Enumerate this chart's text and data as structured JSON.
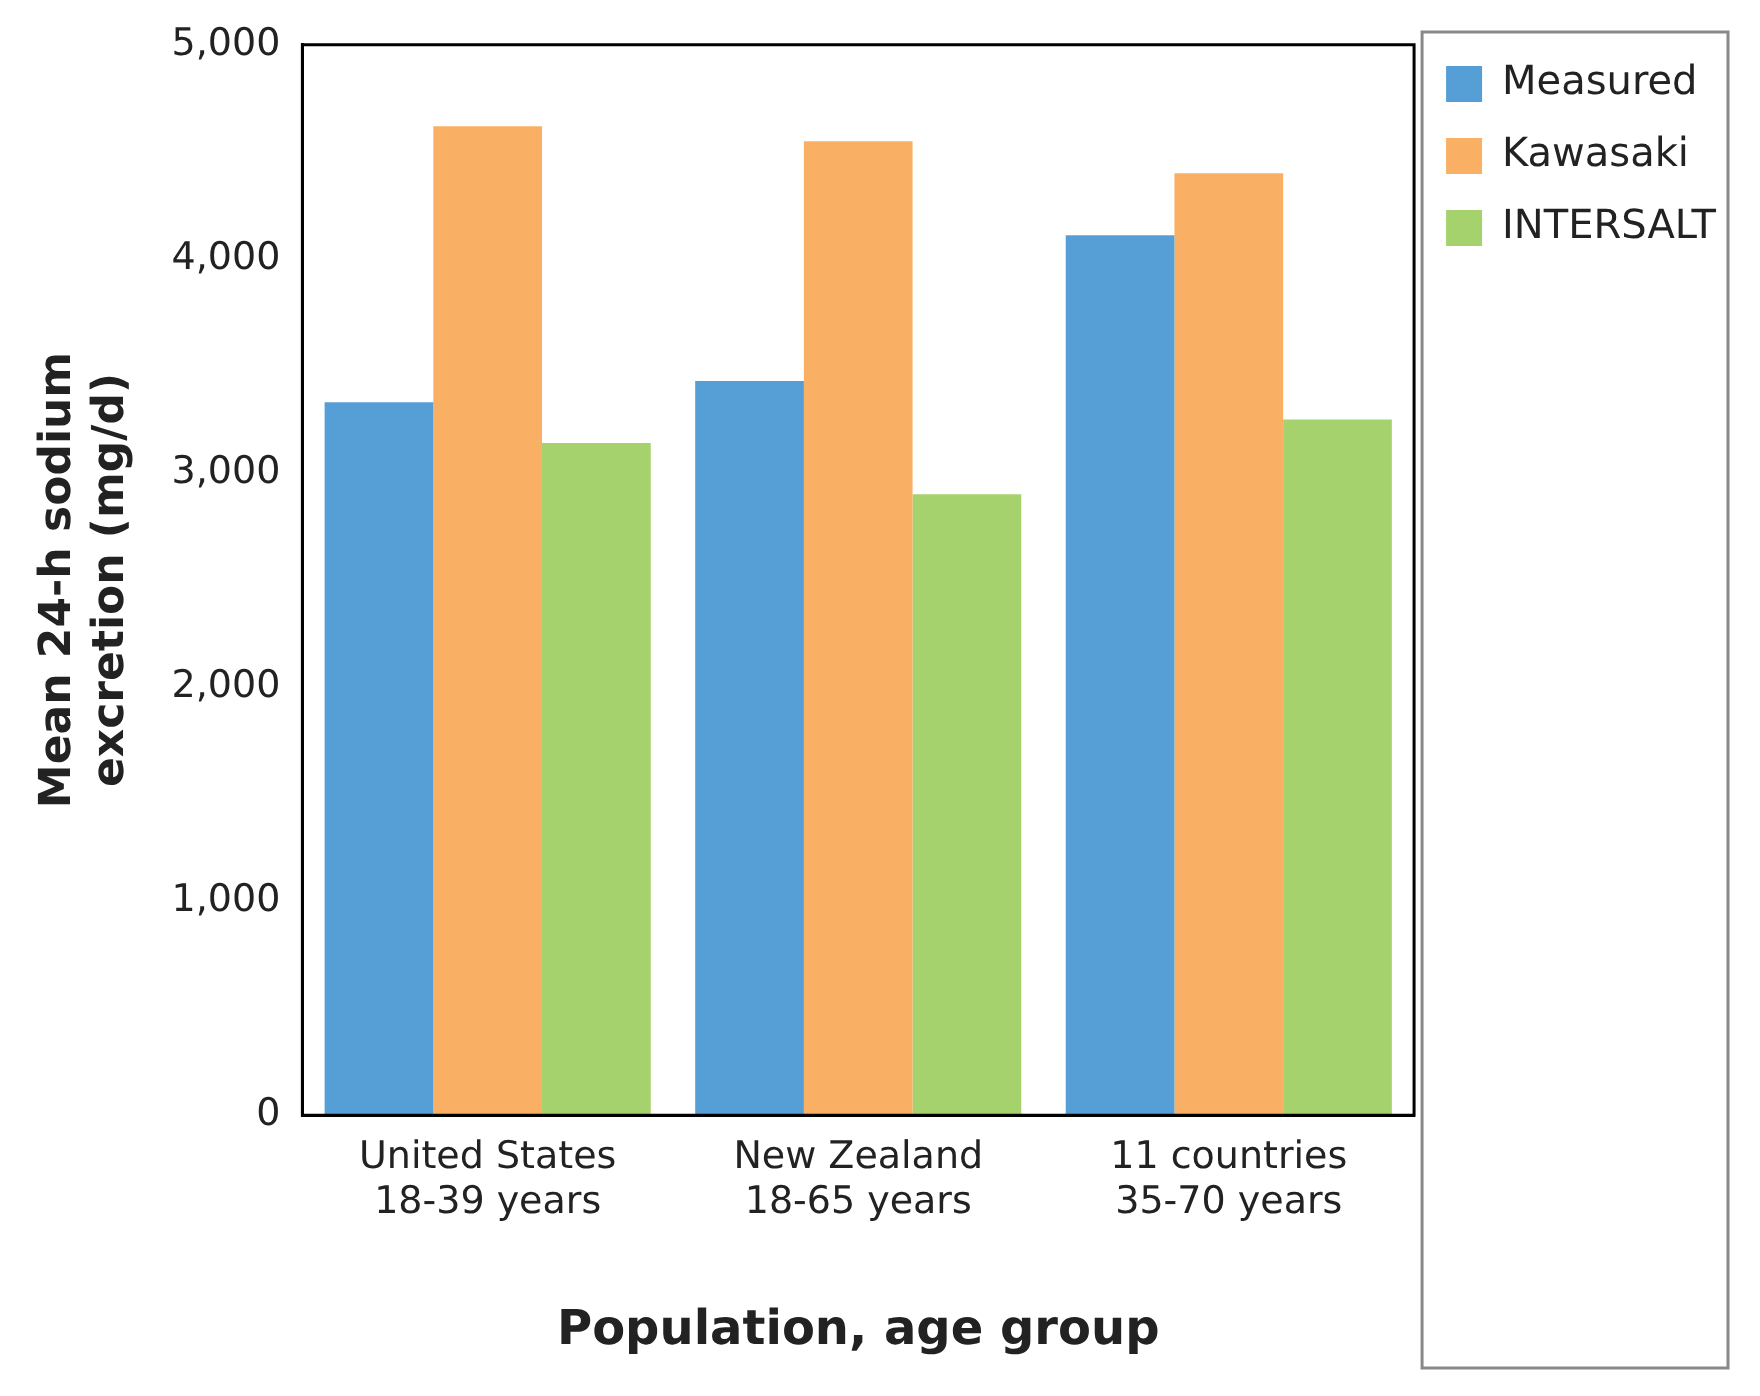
{
  "chart_data": {
    "type": "bar",
    "xlabel": "Population, age group",
    "ylabel": "Mean 24-h sodium\nexcretion (mg/d)",
    "categories": [
      "United States\n18-39 years",
      "New Zealand\n18-65 years",
      "11 countries\n35-70 years"
    ],
    "series": [
      {
        "name": "Measured",
        "color": "#569fd6",
        "values": [
          3330,
          3430,
          4110
        ]
      },
      {
        "name": "Kawasaki",
        "color": "#f9b064",
        "values": [
          4620,
          4550,
          4400
        ]
      },
      {
        "name": "INTERSALT",
        "color": "#a6d26e",
        "values": [
          3140,
          2900,
          3250
        ]
      }
    ],
    "ylim": [
      0,
      5000
    ],
    "yticks": [
      {
        "value": 0,
        "label": "0"
      },
      {
        "value": 1000,
        "label": "1,000"
      },
      {
        "value": 2000,
        "label": "2,000"
      },
      {
        "value": 3000,
        "label": "3,000"
      },
      {
        "value": 4000,
        "label": "4,000"
      },
      {
        "value": 5000,
        "label": "5,000"
      }
    ],
    "grid": false,
    "legend": "top right"
  }
}
